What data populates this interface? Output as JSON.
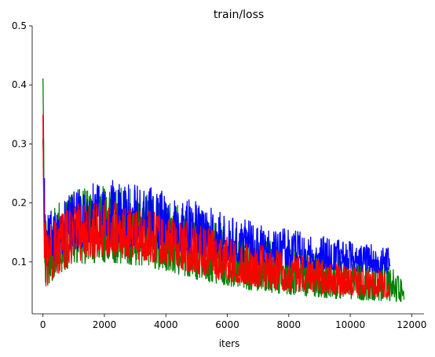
{
  "chart_data": {
    "type": "line",
    "title": "train/loss",
    "xlabel": "iters",
    "ylabel": "",
    "xlim": [
      -350,
      12400
    ],
    "ylim": [
      0.012,
      0.5
    ],
    "x_ticks": [
      0,
      2000,
      4000,
      6000,
      8000,
      10000,
      12000
    ],
    "y_ticks": [
      0.1,
      0.2,
      0.3,
      0.4,
      0.5
    ],
    "grid": false,
    "legend": "none",
    "series": [
      {
        "color": "#008000",
        "x_end": 11750,
        "band": {
          "x": [
            0,
            60,
            150,
            500,
            1000,
            2000,
            3000,
            4000,
            5000,
            6000,
            7000,
            8000,
            9000,
            10000,
            11200,
            11750
          ],
          "low": [
            0.3,
            0.05,
            0.06,
            0.08,
            0.095,
            0.1,
            0.095,
            0.085,
            0.07,
            0.06,
            0.05,
            0.045,
            0.04,
            0.036,
            0.034,
            0.032
          ],
          "high": [
            0.44,
            0.2,
            0.18,
            0.2,
            0.22,
            0.235,
            0.225,
            0.205,
            0.185,
            0.165,
            0.145,
            0.13,
            0.12,
            0.11,
            0.1,
            0.065
          ]
        }
      },
      {
        "color": "#0000ff",
        "x_end": 11300,
        "band": {
          "x": [
            0,
            60,
            150,
            500,
            1000,
            2000,
            3000,
            4000,
            5000,
            6000,
            7000,
            8000,
            9000,
            10000,
            11300
          ],
          "low": [
            0.3,
            0.1,
            0.09,
            0.11,
            0.12,
            0.13,
            0.125,
            0.12,
            0.11,
            0.1,
            0.095,
            0.09,
            0.088,
            0.085,
            0.08
          ],
          "high": [
            0.48,
            0.19,
            0.18,
            0.2,
            0.22,
            0.24,
            0.235,
            0.22,
            0.205,
            0.18,
            0.165,
            0.155,
            0.145,
            0.135,
            0.125
          ]
        }
      },
      {
        "color": "#ff0000",
        "x_end": 11300,
        "band": {
          "x": [
            0,
            60,
            150,
            500,
            1000,
            2000,
            3000,
            4000,
            5000,
            6000,
            7000,
            8000,
            9000,
            10000,
            11300
          ],
          "low": [
            0.3,
            0.045,
            0.06,
            0.08,
            0.1,
            0.11,
            0.105,
            0.095,
            0.08,
            0.068,
            0.058,
            0.05,
            0.046,
            0.043,
            0.04
          ],
          "high": [
            0.48,
            0.17,
            0.16,
            0.18,
            0.2,
            0.205,
            0.195,
            0.18,
            0.165,
            0.145,
            0.13,
            0.115,
            0.105,
            0.095,
            0.085
          ]
        }
      }
    ]
  }
}
